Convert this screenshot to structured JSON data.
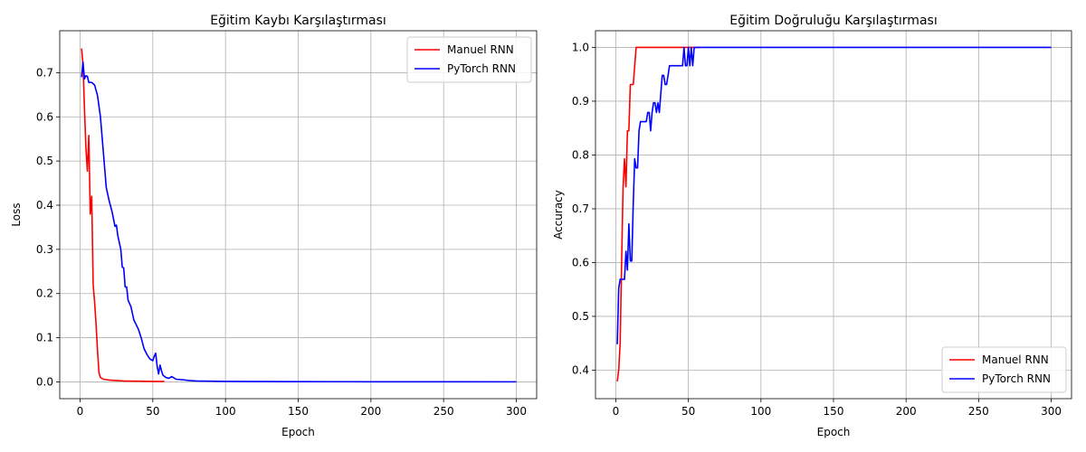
{
  "chart_data": [
    {
      "type": "line",
      "title": "Eğitim Kaybı Karşılaştırması",
      "xlabel": "Epoch",
      "ylabel": "Loss",
      "xlim": [
        -14,
        314
      ],
      "ylim": [
        -0.038,
        0.795
      ],
      "xticks": [
        0,
        50,
        100,
        150,
        200,
        250,
        300
      ],
      "yticks": [
        0.0,
        0.1,
        0.2,
        0.3,
        0.4,
        0.5,
        0.6,
        0.7
      ],
      "ytick_labels": [
        "0.0",
        "0.1",
        "0.2",
        "0.3",
        "0.4",
        "0.5",
        "0.6",
        "0.7"
      ],
      "grid": true,
      "legend_position": "top-right",
      "series": [
        {
          "name": "Manuel RNN",
          "color": "#ff0000",
          "points": [
            [
              1,
              0.755
            ],
            [
              2,
              0.72
            ],
            [
              3,
              0.62
            ],
            [
              4,
              0.53
            ],
            [
              5,
              0.477
            ],
            [
              6,
              0.558
            ],
            [
              7,
              0.38
            ],
            [
              8,
              0.42
            ],
            [
              9,
              0.22
            ],
            [
              10,
              0.18
            ],
            [
              11,
              0.13
            ],
            [
              12,
              0.07
            ],
            [
              13,
              0.02
            ],
            [
              14,
              0.01
            ],
            [
              16,
              0.006
            ],
            [
              20,
              0.004
            ],
            [
              25,
              0.003
            ],
            [
              30,
              0.002
            ],
            [
              40,
              0.0015
            ],
            [
              50,
              0.001
            ],
            [
              58,
              0.001
            ]
          ]
        },
        {
          "name": "PyTorch RNN",
          "color": "#0000ff",
          "points": [
            [
              1,
              0.69
            ],
            [
              2,
              0.724
            ],
            [
              3,
              0.686
            ],
            [
              4,
              0.693
            ],
            [
              5,
              0.692
            ],
            [
              6,
              0.678
            ],
            [
              8,
              0.678
            ],
            [
              10,
              0.672
            ],
            [
              12,
              0.648
            ],
            [
              14,
              0.6
            ],
            [
              16,
              0.52
            ],
            [
              18,
              0.44
            ],
            [
              20,
              0.41
            ],
            [
              22,
              0.385
            ],
            [
              24,
              0.352
            ],
            [
              25,
              0.355
            ],
            [
              26,
              0.33
            ],
            [
              28,
              0.3
            ],
            [
              29,
              0.26
            ],
            [
              30,
              0.258
            ],
            [
              31,
              0.215
            ],
            [
              32,
              0.215
            ],
            [
              33,
              0.185
            ],
            [
              35,
              0.17
            ],
            [
              37,
              0.14
            ],
            [
              40,
              0.12
            ],
            [
              42,
              0.1
            ],
            [
              44,
              0.075
            ],
            [
              46,
              0.062
            ],
            [
              48,
              0.052
            ],
            [
              50,
              0.048
            ],
            [
              51,
              0.058
            ],
            [
              52,
              0.065
            ],
            [
              53,
              0.035
            ],
            [
              54,
              0.018
            ],
            [
              55,
              0.038
            ],
            [
              56,
              0.025
            ],
            [
              57,
              0.015
            ],
            [
              59,
              0.01
            ],
            [
              61,
              0.008
            ],
            [
              63,
              0.012
            ],
            [
              66,
              0.006
            ],
            [
              70,
              0.005
            ],
            [
              75,
              0.003
            ],
            [
              80,
              0.002
            ],
            [
              90,
              0.0015
            ],
            [
              100,
              0.001
            ],
            [
              150,
              0.0005
            ],
            [
              200,
              0.0003
            ],
            [
              250,
              0.0002
            ],
            [
              300,
              0.0001
            ]
          ]
        }
      ]
    },
    {
      "type": "line",
      "title": "Eğitim Doğruluğu Karşılaştırması",
      "xlabel": "Epoch",
      "ylabel": "Accuracy",
      "xlim": [
        -14,
        314
      ],
      "ylim": [
        0.347,
        1.031
      ],
      "xticks": [
        0,
        50,
        100,
        150,
        200,
        250,
        300
      ],
      "yticks": [
        0.4,
        0.5,
        0.6,
        0.7,
        0.8,
        0.9,
        1.0
      ],
      "ytick_labels": [
        "0.4",
        "0.5",
        "0.6",
        "0.7",
        "0.8",
        "0.9",
        "1.0"
      ],
      "grid": true,
      "legend_position": "bottom-right",
      "series": [
        {
          "name": "Manuel RNN",
          "color": "#ff0000",
          "points": [
            [
              1,
              0.379
            ],
            [
              2,
              0.4
            ],
            [
              3,
              0.45
            ],
            [
              4,
              0.6
            ],
            [
              5,
              0.74
            ],
            [
              6,
              0.793
            ],
            [
              7,
              0.741
            ],
            [
              8,
              0.845
            ],
            [
              9,
              0.845
            ],
            [
              10,
              0.931
            ],
            [
              11,
              0.931
            ],
            [
              12,
              0.931
            ],
            [
              13,
              0.965
            ],
            [
              14,
              1.0
            ],
            [
              20,
              1.0
            ],
            [
              30,
              1.0
            ],
            [
              40,
              1.0
            ],
            [
              50,
              1.0
            ],
            [
              58,
              1.0
            ]
          ]
        },
        {
          "name": "PyTorch RNN",
          "color": "#0000ff",
          "points": [
            [
              1,
              0.448
            ],
            [
              2,
              0.552
            ],
            [
              3,
              0.569
            ],
            [
              4,
              0.569
            ],
            [
              5,
              0.569
            ],
            [
              6,
              0.569
            ],
            [
              7,
              0.621
            ],
            [
              8,
              0.586
            ],
            [
              9,
              0.672
            ],
            [
              10,
              0.603
            ],
            [
              11,
              0.603
            ],
            [
              12,
              0.707
            ],
            [
              13,
              0.793
            ],
            [
              14,
              0.776
            ],
            [
              15,
              0.776
            ],
            [
              16,
              0.845
            ],
            [
              17,
              0.862
            ],
            [
              18,
              0.862
            ],
            [
              19,
              0.862
            ],
            [
              20,
              0.862
            ],
            [
              21,
              0.862
            ],
            [
              22,
              0.879
            ],
            [
              23,
              0.879
            ],
            [
              24,
              0.845
            ],
            [
              25,
              0.879
            ],
            [
              26,
              0.897
            ],
            [
              27,
              0.897
            ],
            [
              28,
              0.879
            ],
            [
              29,
              0.897
            ],
            [
              30,
              0.879
            ],
            [
              31,
              0.914
            ],
            [
              32,
              0.948
            ],
            [
              33,
              0.948
            ],
            [
              34,
              0.931
            ],
            [
              35,
              0.931
            ],
            [
              36,
              0.948
            ],
            [
              37,
              0.966
            ],
            [
              38,
              0.966
            ],
            [
              40,
              0.966
            ],
            [
              42,
              0.966
            ],
            [
              44,
              0.966
            ],
            [
              46,
              0.966
            ],
            [
              47,
              1.0
            ],
            [
              48,
              0.966
            ],
            [
              49,
              0.966
            ],
            [
              50,
              1.0
            ],
            [
              51,
              0.966
            ],
            [
              52,
              1.0
            ],
            [
              53,
              0.966
            ],
            [
              54,
              1.0
            ],
            [
              55,
              1.0
            ],
            [
              60,
              1.0
            ],
            [
              100,
              1.0
            ],
            [
              150,
              1.0
            ],
            [
              200,
              1.0
            ],
            [
              250,
              1.0
            ],
            [
              300,
              1.0
            ]
          ]
        }
      ]
    }
  ]
}
